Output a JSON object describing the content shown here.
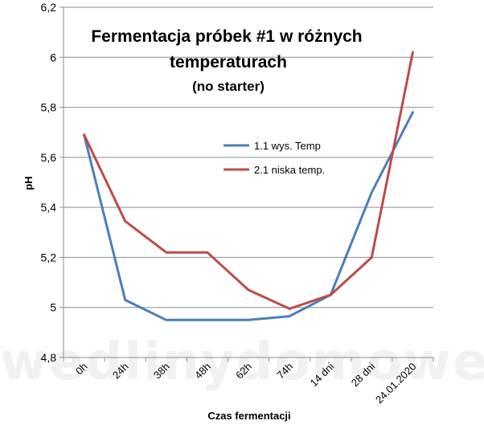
{
  "chart_data": {
    "type": "line",
    "title": "Fermentacja próbek #1 w różnych",
    "title_line2": "temperaturach",
    "subtitle": "(no starter)",
    "xlabel": "Czas fermentacji",
    "ylabel": "pH",
    "ylim": [
      4.8,
      6.2
    ],
    "yticks": [
      "4,8",
      "5",
      "5,2",
      "5,4",
      "5,6",
      "5,8",
      "6",
      "6,2"
    ],
    "categories": [
      "0h",
      "24h",
      "38h",
      "48h",
      "62h",
      "74h",
      "14 dni",
      "28 dni",
      "24.01.2020"
    ],
    "grid": true,
    "legend_position": "upper-right",
    "series": [
      {
        "name": "1.1 wys. Temp",
        "color": "#4a7ebb",
        "values": [
          5.69,
          5.03,
          4.95,
          4.95,
          4.95,
          4.965,
          5.05,
          5.46,
          5.78
        ]
      },
      {
        "name": "2.1 niska temp.",
        "color": "#be4b48",
        "values": [
          5.69,
          5.345,
          5.22,
          5.22,
          5.07,
          4.995,
          5.05,
          5.2,
          6.02
        ]
      }
    ]
  },
  "watermark": "wedlinydomowe.pl"
}
